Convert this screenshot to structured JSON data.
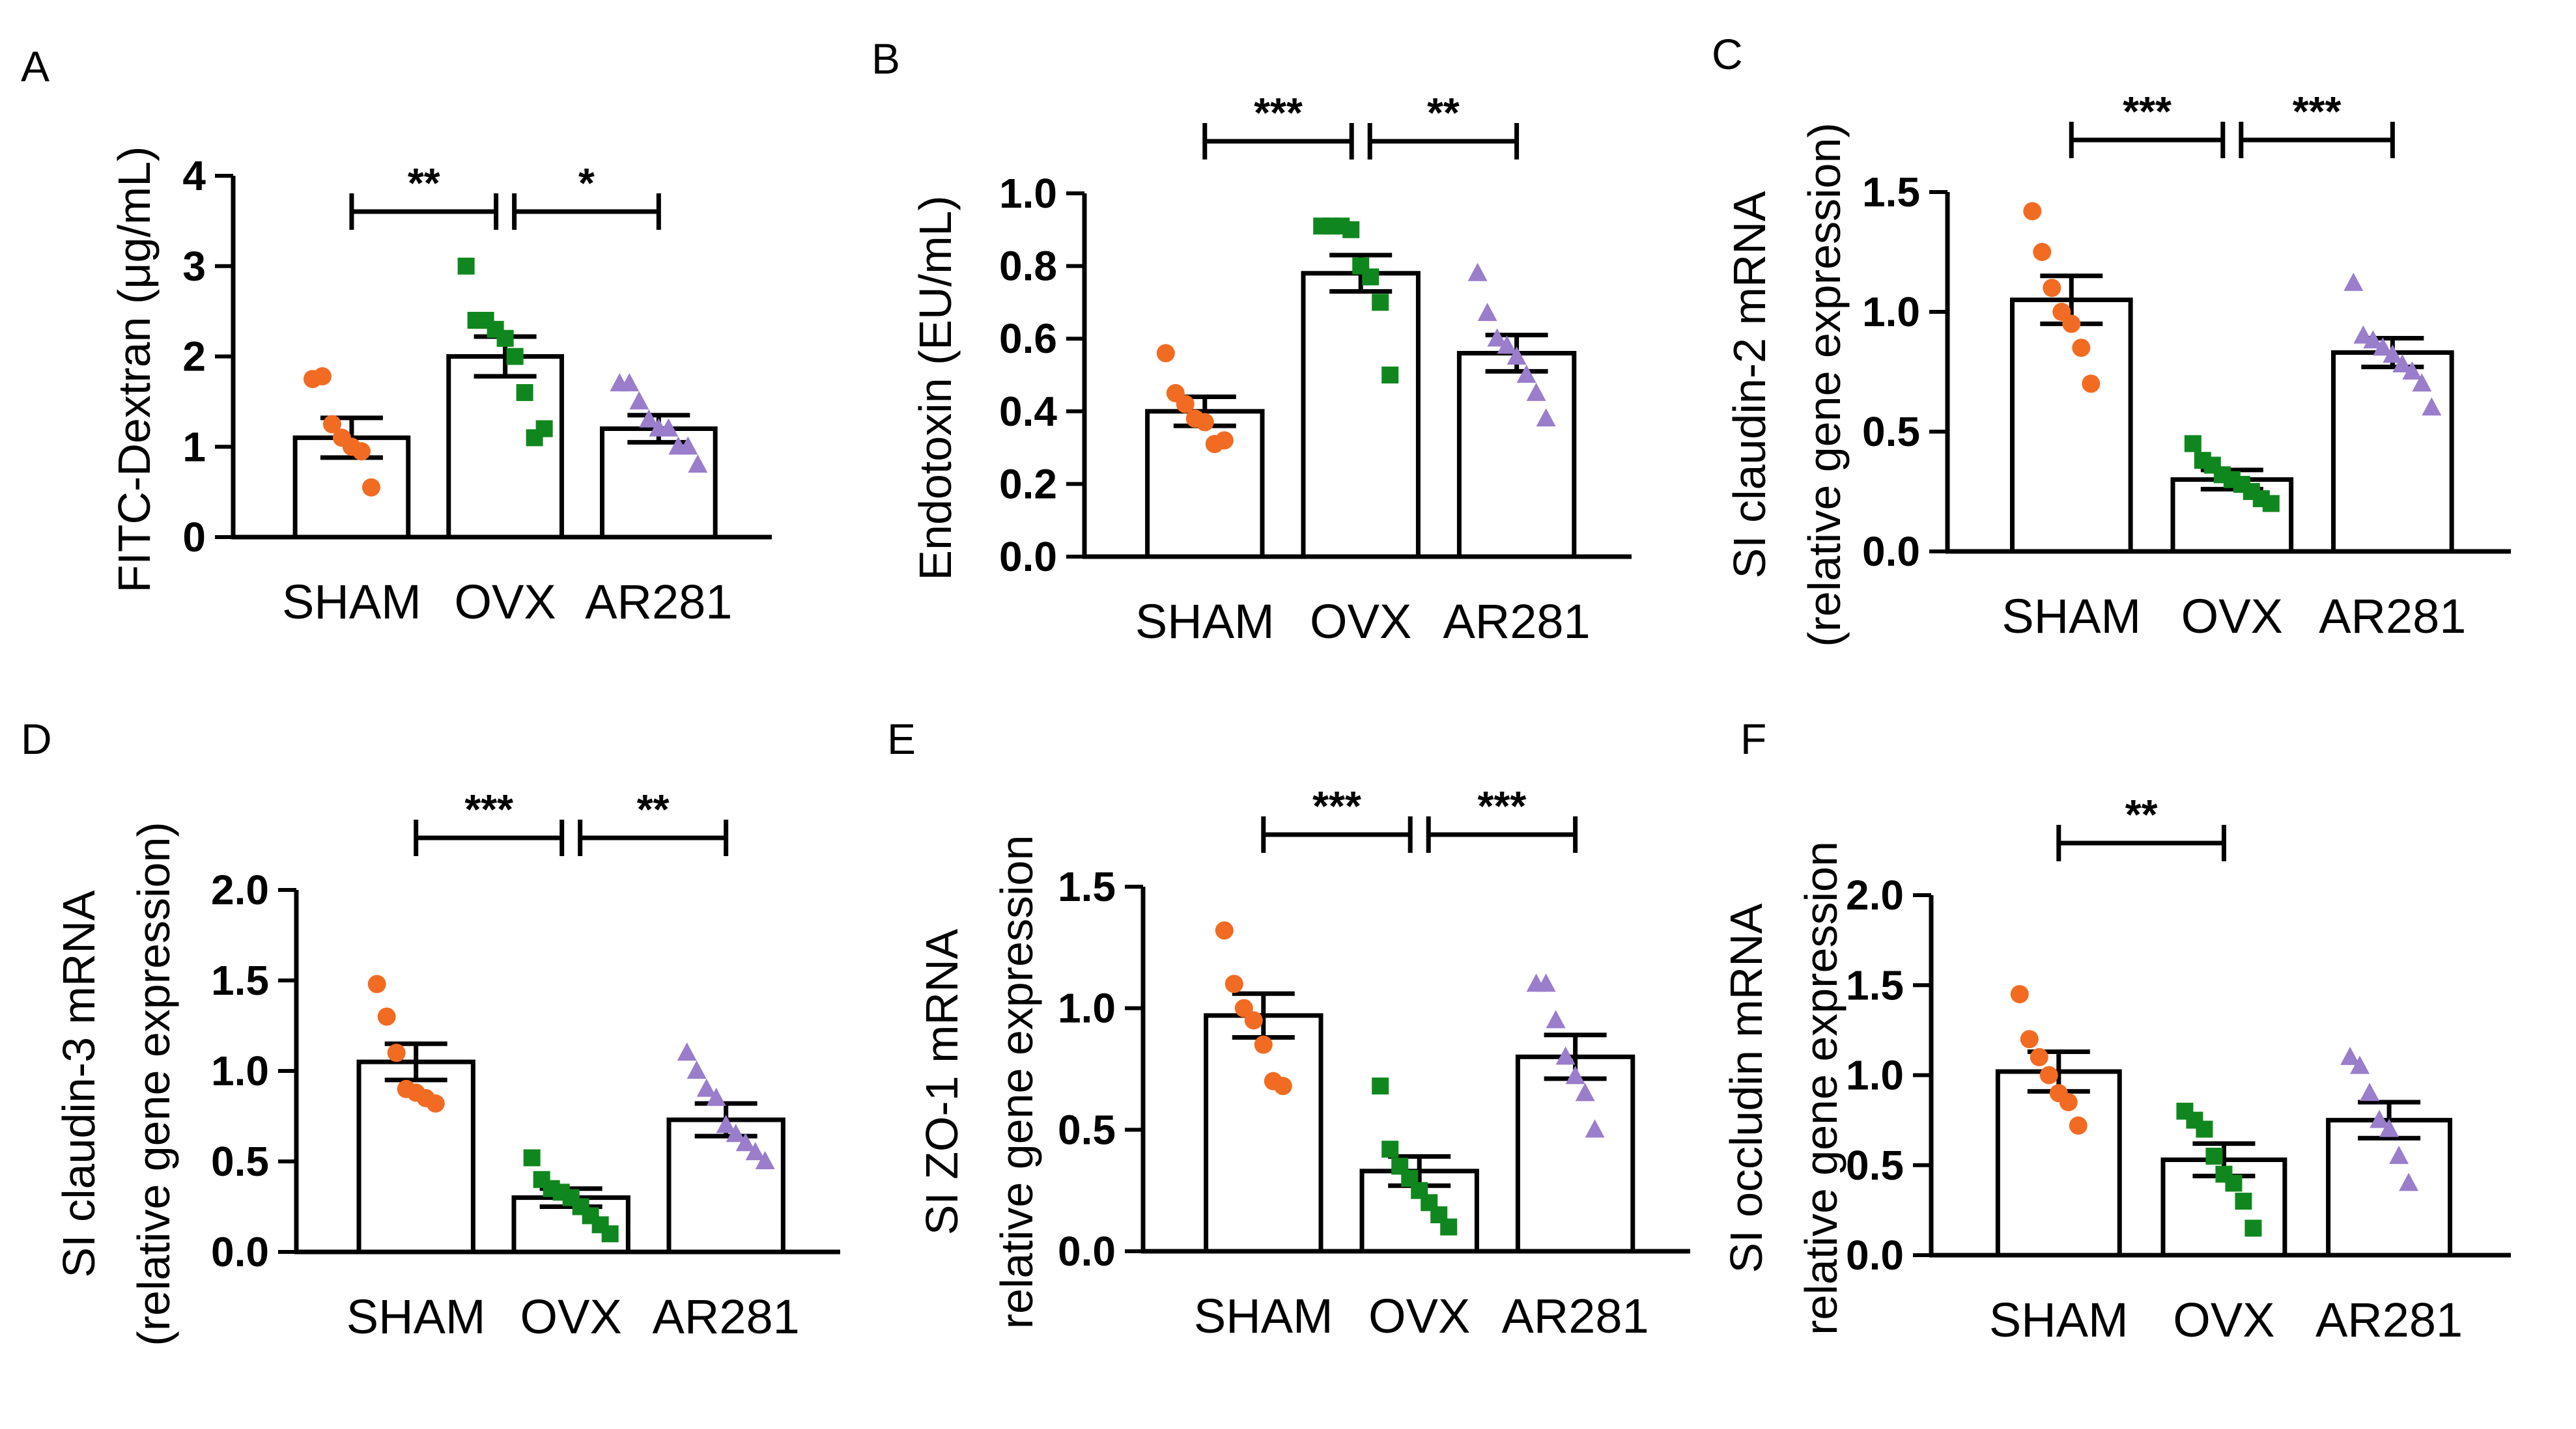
{
  "colors": {
    "sham": "#F26B22",
    "ovx": "#10871E",
    "ar281": "#9A7DCB",
    "bar_fill": "#FFFFFF",
    "axis": "#000000"
  },
  "chart_data": [
    {
      "type": "bar",
      "panel": "A",
      "ylabel": "FITC-Dextran (μg/mL)",
      "categories": [
        "SHAM",
        "OVX",
        "AR281"
      ],
      "ylim": [
        0,
        4
      ],
      "yticks": [
        "0",
        "1",
        "2",
        "3",
        "4"
      ],
      "means": [
        1.1,
        2.0,
        1.2
      ],
      "sem": [
        0.22,
        0.22,
        0.15
      ],
      "points": [
        [
          1.75,
          1.78,
          1.25,
          1.1,
          1.0,
          0.95,
          0.55
        ],
        [
          3.0,
          2.4,
          2.4,
          2.3,
          2.2,
          2.0,
          1.6,
          1.1,
          1.2
        ],
        [
          1.7,
          1.7,
          1.5,
          1.3,
          1.2,
          1.2,
          1.0,
          1.0,
          0.8
        ]
      ],
      "significance": [
        {
          "from": 0,
          "to": 1,
          "label": "**"
        },
        {
          "from": 1,
          "to": 2,
          "label": "*"
        }
      ]
    },
    {
      "type": "bar",
      "panel": "B",
      "ylabel": "Endotoxin (EU/mL)",
      "categories": [
        "SHAM",
        "OVX",
        "AR281"
      ],
      "ylim": [
        0,
        1.0
      ],
      "yticks": [
        "0.0",
        "0.2",
        "0.4",
        "0.6",
        "0.8",
        "1.0"
      ],
      "means": [
        0.4,
        0.78,
        0.56
      ],
      "sem": [
        0.04,
        0.05,
        0.05
      ],
      "points": [
        [
          0.56,
          0.45,
          0.42,
          0.38,
          0.37,
          0.31,
          0.32
        ],
        [
          0.91,
          0.91,
          0.91,
          0.9,
          0.8,
          0.77,
          0.7,
          0.5
        ],
        [
          0.78,
          0.67,
          0.6,
          0.58,
          0.55,
          0.5,
          0.45,
          0.38
        ]
      ],
      "significance": [
        {
          "from": 0,
          "to": 1,
          "label": "***"
        },
        {
          "from": 1,
          "to": 2,
          "label": "**"
        }
      ]
    },
    {
      "type": "bar",
      "panel": "C",
      "ylabel": "SI claudin-2 mRNA",
      "ylabel2": "(relative gene expression)",
      "categories": [
        "SHAM",
        "OVX",
        "AR281"
      ],
      "ylim": [
        0,
        1.5
      ],
      "yticks": [
        "0.0",
        "0.5",
        "1.0",
        "1.5"
      ],
      "means": [
        1.05,
        0.3,
        0.83
      ],
      "sem": [
        0.1,
        0.04,
        0.06
      ],
      "points": [
        [
          1.42,
          1.25,
          1.1,
          1.0,
          0.95,
          0.85,
          0.7
        ],
        [
          0.45,
          0.38,
          0.36,
          0.32,
          0.3,
          0.28,
          0.25,
          0.22,
          0.2
        ],
        [
          1.12,
          0.9,
          0.88,
          0.85,
          0.82,
          0.78,
          0.75,
          0.7,
          0.6
        ]
      ],
      "significance": [
        {
          "from": 0,
          "to": 1,
          "label": "***"
        },
        {
          "from": 1,
          "to": 2,
          "label": "***"
        }
      ]
    },
    {
      "type": "bar",
      "panel": "D",
      "ylabel": "SI claudin-3 mRNA",
      "ylabel2": "(relative gene expression)",
      "categories": [
        "SHAM",
        "OVX",
        "AR281"
      ],
      "ylim": [
        0,
        2.0
      ],
      "yticks": [
        "0.0",
        "0.5",
        "1.0",
        "1.5",
        "2.0"
      ],
      "means": [
        1.05,
        0.3,
        0.73
      ],
      "sem": [
        0.1,
        0.05,
        0.09
      ],
      "points": [
        [
          1.48,
          1.3,
          1.1,
          0.9,
          0.88,
          0.85,
          0.82
        ],
        [
          0.52,
          0.4,
          0.35,
          0.33,
          0.3,
          0.25,
          0.2,
          0.15,
          0.1
        ],
        [
          1.1,
          1.0,
          0.9,
          0.85,
          0.7,
          0.65,
          0.6,
          0.55,
          0.5
        ]
      ],
      "significance": [
        {
          "from": 0,
          "to": 1,
          "label": "***"
        },
        {
          "from": 1,
          "to": 2,
          "label": "**"
        }
      ]
    },
    {
      "type": "bar",
      "panel": "E",
      "ylabel": "SI ZO-1 mRNA",
      "ylabel2": "relative gene expression",
      "categories": [
        "SHAM",
        "OVX",
        "AR281"
      ],
      "ylim": [
        0,
        1.5
      ],
      "yticks": [
        "0.0",
        "0.5",
        "1.0",
        "1.5"
      ],
      "means": [
        0.97,
        0.33,
        0.8
      ],
      "sem": [
        0.09,
        0.06,
        0.09
      ],
      "points": [
        [
          1.32,
          1.1,
          1.0,
          0.95,
          0.85,
          0.7,
          0.68
        ],
        [
          0.68,
          0.42,
          0.35,
          0.3,
          0.25,
          0.2,
          0.15,
          0.1
        ],
        [
          1.1,
          1.1,
          0.95,
          0.8,
          0.72,
          0.65,
          0.5
        ]
      ],
      "significance": [
        {
          "from": 0,
          "to": 1,
          "label": "***"
        },
        {
          "from": 1,
          "to": 2,
          "label": "***"
        }
      ]
    },
    {
      "type": "bar",
      "panel": "F",
      "ylabel": "SI occludin mRNA",
      "ylabel2": "relative gene expression",
      "categories": [
        "SHAM",
        "OVX",
        "AR281"
      ],
      "ylim": [
        0,
        2.0
      ],
      "yticks": [
        "0.0",
        "0.5",
        "1.0",
        "1.5",
        "2.0"
      ],
      "means": [
        1.02,
        0.53,
        0.75
      ],
      "sem": [
        0.11,
        0.09,
        0.1
      ],
      "points": [
        [
          1.45,
          1.2,
          1.1,
          1.0,
          0.9,
          0.85,
          0.72
        ],
        [
          0.8,
          0.75,
          0.7,
          0.55,
          0.45,
          0.4,
          0.3,
          0.15
        ],
        [
          1.1,
          1.05,
          0.9,
          0.75,
          0.7,
          0.55,
          0.4
        ]
      ],
      "significance": [
        {
          "from": 0,
          "to": 1,
          "label": "**"
        }
      ]
    }
  ]
}
